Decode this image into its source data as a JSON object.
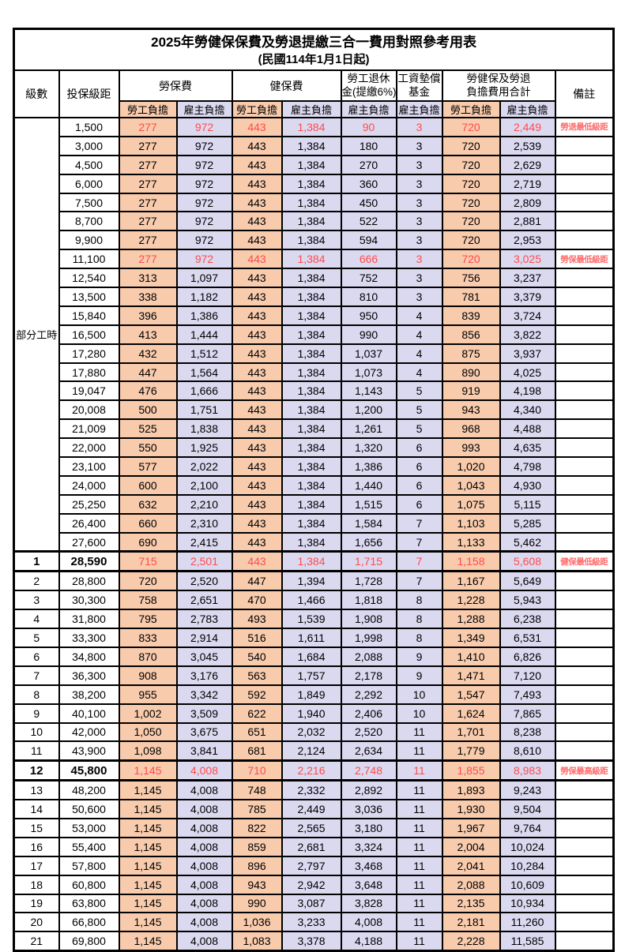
{
  "title": "2025年勞健保保費及勞退提繳三合一費用對照參考用表",
  "subtitle": "(民國114年1月1日起)",
  "colors": {
    "employee_column_bg": "#F8CBAD",
    "employer_column_bg": "#DBD9F0",
    "highlight_text": "#FF4B4B",
    "border": "#000000",
    "background": "#FFFFFF"
  },
  "header": {
    "level": "級數",
    "salary": "投保級距",
    "labor_insurance": "勞保費",
    "health_insurance": "健保費",
    "pension_line1": "勞工退休",
    "pension_line2": "金(提繳6%)",
    "wage_fund_line1": "工資墊償",
    "wage_fund_line2": "基金",
    "total_line1": "勞健保及勞退",
    "total_line2": "負擔費用合計",
    "remark": "備註",
    "employee": "勞工負擔",
    "employer": "雇主負擔"
  },
  "part_time_label": "部分工時",
  "rows": [
    {
      "level": null,
      "salary": "1,500",
      "values": [
        "277",
        "972",
        "443",
        "1,384",
        "90",
        "3",
        "720",
        "2,449"
      ],
      "remark": "勞退最低級距",
      "highlight": true,
      "bold": false,
      "thick": false
    },
    {
      "level": null,
      "salary": "3,000",
      "values": [
        "277",
        "972",
        "443",
        "1,384",
        "180",
        "3",
        "720",
        "2,539"
      ],
      "remark": "",
      "highlight": false,
      "bold": false,
      "thick": false
    },
    {
      "level": null,
      "salary": "4,500",
      "values": [
        "277",
        "972",
        "443",
        "1,384",
        "270",
        "3",
        "720",
        "2,629"
      ],
      "remark": "",
      "highlight": false,
      "bold": false,
      "thick": false
    },
    {
      "level": null,
      "salary": "6,000",
      "values": [
        "277",
        "972",
        "443",
        "1,384",
        "360",
        "3",
        "720",
        "2,719"
      ],
      "remark": "",
      "highlight": false,
      "bold": false,
      "thick": false
    },
    {
      "level": null,
      "salary": "7,500",
      "values": [
        "277",
        "972",
        "443",
        "1,384",
        "450",
        "3",
        "720",
        "2,809"
      ],
      "remark": "",
      "highlight": false,
      "bold": false,
      "thick": false
    },
    {
      "level": null,
      "salary": "8,700",
      "values": [
        "277",
        "972",
        "443",
        "1,384",
        "522",
        "3",
        "720",
        "2,881"
      ],
      "remark": "",
      "highlight": false,
      "bold": false,
      "thick": false
    },
    {
      "level": null,
      "salary": "9,900",
      "values": [
        "277",
        "972",
        "443",
        "1,384",
        "594",
        "3",
        "720",
        "2,953"
      ],
      "remark": "",
      "highlight": false,
      "bold": false,
      "thick": false
    },
    {
      "level": null,
      "salary": "11,100",
      "values": [
        "277",
        "972",
        "443",
        "1,384",
        "666",
        "3",
        "720",
        "3,025"
      ],
      "remark": "勞保最低級距",
      "highlight": true,
      "bold": false,
      "thick": false
    },
    {
      "level": null,
      "salary": "12,540",
      "values": [
        "313",
        "1,097",
        "443",
        "1,384",
        "752",
        "3",
        "756",
        "3,237"
      ],
      "remark": "",
      "highlight": false,
      "bold": false,
      "thick": false
    },
    {
      "level": null,
      "salary": "13,500",
      "values": [
        "338",
        "1,182",
        "443",
        "1,384",
        "810",
        "3",
        "781",
        "3,379"
      ],
      "remark": "",
      "highlight": false,
      "bold": false,
      "thick": false
    },
    {
      "level": null,
      "salary": "15,840",
      "values": [
        "396",
        "1,386",
        "443",
        "1,384",
        "950",
        "4",
        "839",
        "3,724"
      ],
      "remark": "",
      "highlight": false,
      "bold": false,
      "thick": false
    },
    {
      "level": null,
      "salary": "16,500",
      "values": [
        "413",
        "1,444",
        "443",
        "1,384",
        "990",
        "4",
        "856",
        "3,822"
      ],
      "remark": "",
      "highlight": false,
      "bold": false,
      "thick": false
    },
    {
      "level": null,
      "salary": "17,280",
      "values": [
        "432",
        "1,512",
        "443",
        "1,384",
        "1,037",
        "4",
        "875",
        "3,937"
      ],
      "remark": "",
      "highlight": false,
      "bold": false,
      "thick": false
    },
    {
      "level": null,
      "salary": "17,880",
      "values": [
        "447",
        "1,564",
        "443",
        "1,384",
        "1,073",
        "4",
        "890",
        "4,025"
      ],
      "remark": "",
      "highlight": false,
      "bold": false,
      "thick": false
    },
    {
      "level": null,
      "salary": "19,047",
      "values": [
        "476",
        "1,666",
        "443",
        "1,384",
        "1,143",
        "5",
        "919",
        "4,198"
      ],
      "remark": "",
      "highlight": false,
      "bold": false,
      "thick": false
    },
    {
      "level": null,
      "salary": "20,008",
      "values": [
        "500",
        "1,751",
        "443",
        "1,384",
        "1,200",
        "5",
        "943",
        "4,340"
      ],
      "remark": "",
      "highlight": false,
      "bold": false,
      "thick": false
    },
    {
      "level": null,
      "salary": "21,009",
      "values": [
        "525",
        "1,838",
        "443",
        "1,384",
        "1,261",
        "5",
        "968",
        "4,488"
      ],
      "remark": "",
      "highlight": false,
      "bold": false,
      "thick": false
    },
    {
      "level": null,
      "salary": "22,000",
      "values": [
        "550",
        "1,925",
        "443",
        "1,384",
        "1,320",
        "6",
        "993",
        "4,635"
      ],
      "remark": "",
      "highlight": false,
      "bold": false,
      "thick": false
    },
    {
      "level": null,
      "salary": "23,100",
      "values": [
        "577",
        "2,022",
        "443",
        "1,384",
        "1,386",
        "6",
        "1,020",
        "4,798"
      ],
      "remark": "",
      "highlight": false,
      "bold": false,
      "thick": false
    },
    {
      "level": null,
      "salary": "24,000",
      "values": [
        "600",
        "2,100",
        "443",
        "1,384",
        "1,440",
        "6",
        "1,043",
        "4,930"
      ],
      "remark": "",
      "highlight": false,
      "bold": false,
      "thick": false
    },
    {
      "level": null,
      "salary": "25,250",
      "values": [
        "632",
        "2,210",
        "443",
        "1,384",
        "1,515",
        "6",
        "1,075",
        "5,115"
      ],
      "remark": "",
      "highlight": false,
      "bold": false,
      "thick": false
    },
    {
      "level": null,
      "salary": "26,400",
      "values": [
        "660",
        "2,310",
        "443",
        "1,384",
        "1,584",
        "7",
        "1,103",
        "5,285"
      ],
      "remark": "",
      "highlight": false,
      "bold": false,
      "thick": false
    },
    {
      "level": null,
      "salary": "27,600",
      "values": [
        "690",
        "2,415",
        "443",
        "1,384",
        "1,656",
        "7",
        "1,133",
        "5,462"
      ],
      "remark": "",
      "highlight": false,
      "bold": false,
      "thick": false
    },
    {
      "level": "1",
      "salary": "28,590",
      "values": [
        "715",
        "2,501",
        "443",
        "1,384",
        "1,715",
        "7",
        "1,158",
        "5,608"
      ],
      "remark": "健保最低級距",
      "highlight": true,
      "bold": true,
      "thick": true
    },
    {
      "level": "2",
      "salary": "28,800",
      "values": [
        "720",
        "2,520",
        "447",
        "1,394",
        "1,728",
        "7",
        "1,167",
        "5,649"
      ],
      "remark": "",
      "highlight": false,
      "bold": false,
      "thick": false
    },
    {
      "level": "3",
      "salary": "30,300",
      "values": [
        "758",
        "2,651",
        "470",
        "1,466",
        "1,818",
        "8",
        "1,228",
        "5,943"
      ],
      "remark": "",
      "highlight": false,
      "bold": false,
      "thick": false
    },
    {
      "level": "4",
      "salary": "31,800",
      "values": [
        "795",
        "2,783",
        "493",
        "1,539",
        "1,908",
        "8",
        "1,288",
        "6,238"
      ],
      "remark": "",
      "highlight": false,
      "bold": false,
      "thick": false
    },
    {
      "level": "5",
      "salary": "33,300",
      "values": [
        "833",
        "2,914",
        "516",
        "1,611",
        "1,998",
        "8",
        "1,349",
        "6,531"
      ],
      "remark": "",
      "highlight": false,
      "bold": false,
      "thick": false
    },
    {
      "level": "6",
      "salary": "34,800",
      "values": [
        "870",
        "3,045",
        "540",
        "1,684",
        "2,088",
        "9",
        "1,410",
        "6,826"
      ],
      "remark": "",
      "highlight": false,
      "bold": false,
      "thick": false
    },
    {
      "level": "7",
      "salary": "36,300",
      "values": [
        "908",
        "3,176",
        "563",
        "1,757",
        "2,178",
        "9",
        "1,471",
        "7,120"
      ],
      "remark": "",
      "highlight": false,
      "bold": false,
      "thick": false
    },
    {
      "level": "8",
      "salary": "38,200",
      "values": [
        "955",
        "3,342",
        "592",
        "1,849",
        "2,292",
        "10",
        "1,547",
        "7,493"
      ],
      "remark": "",
      "highlight": false,
      "bold": false,
      "thick": false
    },
    {
      "level": "9",
      "salary": "40,100",
      "values": [
        "1,002",
        "3,509",
        "622",
        "1,940",
        "2,406",
        "10",
        "1,624",
        "7,865"
      ],
      "remark": "",
      "highlight": false,
      "bold": false,
      "thick": false
    },
    {
      "level": "10",
      "salary": "42,000",
      "values": [
        "1,050",
        "3,675",
        "651",
        "2,032",
        "2,520",
        "11",
        "1,701",
        "8,238"
      ],
      "remark": "",
      "highlight": false,
      "bold": false,
      "thick": false
    },
    {
      "level": "11",
      "salary": "43,900",
      "values": [
        "1,098",
        "3,841",
        "681",
        "2,124",
        "2,634",
        "11",
        "1,779",
        "8,610"
      ],
      "remark": "",
      "highlight": false,
      "bold": false,
      "thick": false
    },
    {
      "level": "12",
      "salary": "45,800",
      "values": [
        "1,145",
        "4,008",
        "710",
        "2,216",
        "2,748",
        "11",
        "1,855",
        "8,983"
      ],
      "remark": "勞保最高級距",
      "highlight": true,
      "bold": true,
      "thick": true
    },
    {
      "level": "13",
      "salary": "48,200",
      "values": [
        "1,145",
        "4,008",
        "748",
        "2,332",
        "2,892",
        "11",
        "1,893",
        "9,243"
      ],
      "remark": "",
      "highlight": false,
      "bold": false,
      "thick": false
    },
    {
      "level": "14",
      "salary": "50,600",
      "values": [
        "1,145",
        "4,008",
        "785",
        "2,449",
        "3,036",
        "11",
        "1,930",
        "9,504"
      ],
      "remark": "",
      "highlight": false,
      "bold": false,
      "thick": false
    },
    {
      "level": "15",
      "salary": "53,000",
      "values": [
        "1,145",
        "4,008",
        "822",
        "2,565",
        "3,180",
        "11",
        "1,967",
        "9,764"
      ],
      "remark": "",
      "highlight": false,
      "bold": false,
      "thick": false
    },
    {
      "level": "16",
      "salary": "55,400",
      "values": [
        "1,145",
        "4,008",
        "859",
        "2,681",
        "3,324",
        "11",
        "2,004",
        "10,024"
      ],
      "remark": "",
      "highlight": false,
      "bold": false,
      "thick": false
    },
    {
      "level": "17",
      "salary": "57,800",
      "values": [
        "1,145",
        "4,008",
        "896",
        "2,797",
        "3,468",
        "11",
        "2,041",
        "10,284"
      ],
      "remark": "",
      "highlight": false,
      "bold": false,
      "thick": false
    },
    {
      "level": "18",
      "salary": "60,800",
      "values": [
        "1,145",
        "4,008",
        "943",
        "2,942",
        "3,648",
        "11",
        "2,088",
        "10,609"
      ],
      "remark": "",
      "highlight": false,
      "bold": false,
      "thick": false
    },
    {
      "level": "19",
      "salary": "63,800",
      "values": [
        "1,145",
        "4,008",
        "990",
        "3,087",
        "3,828",
        "11",
        "2,135",
        "10,934"
      ],
      "remark": "",
      "highlight": false,
      "bold": false,
      "thick": false
    },
    {
      "level": "20",
      "salary": "66,800",
      "values": [
        "1,145",
        "4,008",
        "1,036",
        "3,233",
        "4,008",
        "11",
        "2,181",
        "11,260"
      ],
      "remark": "",
      "highlight": false,
      "bold": false,
      "thick": false
    },
    {
      "level": "21",
      "salary": "69,800",
      "values": [
        "1,145",
        "4,008",
        "1,083",
        "3,378",
        "4,188",
        "11",
        "2,228",
        "11,585"
      ],
      "remark": "",
      "highlight": false,
      "bold": false,
      "thick": false
    }
  ]
}
